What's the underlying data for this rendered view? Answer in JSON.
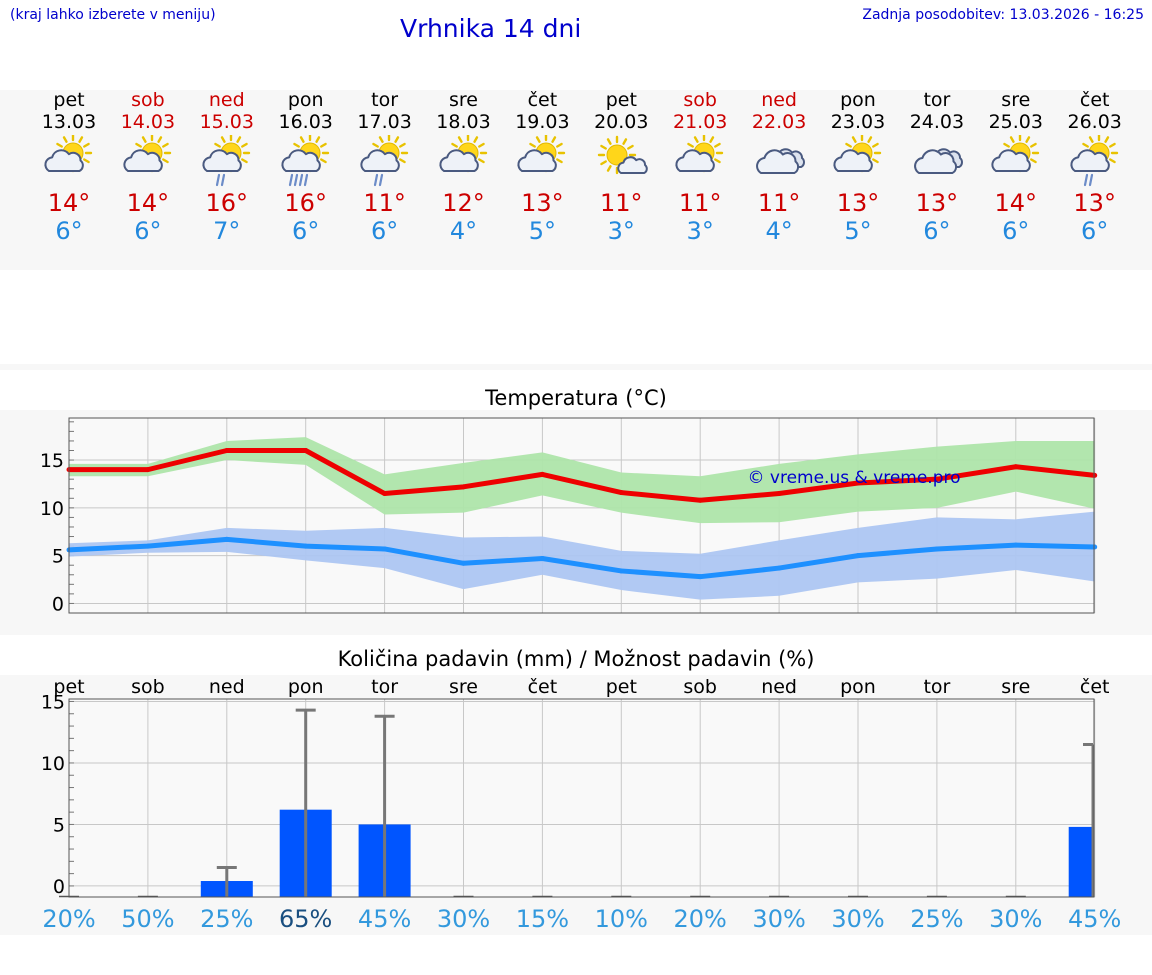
{
  "header": {
    "hint": "(kraj lahko izberete v meniju)",
    "title": "Vrhnika 14 dni",
    "updated": "Zadnja posodobitev: 13.03.2026 - 16:25"
  },
  "colors": {
    "title": "#0000cc",
    "weekend": "#cc0000",
    "max_temp": "#cc0000",
    "min_temp": "#2288dd",
    "max_line": "#ee0000",
    "max_band": "#aee5aa",
    "min_line": "#1e90ff",
    "min_band": "#adc6f2",
    "bar": "#0055ff",
    "prob": "#3399dd",
    "prob_high": "#1a4f80"
  },
  "days": [
    {
      "name": "pet",
      "date": "13.03",
      "weekend": false,
      "icon": "partly-cloudy-icon",
      "max": "14°",
      "min": "6°"
    },
    {
      "name": "sob",
      "date": "14.03",
      "weekend": true,
      "icon": "partly-cloudy-icon",
      "max": "14°",
      "min": "6°"
    },
    {
      "name": "ned",
      "date": "15.03",
      "weekend": true,
      "icon": "sun-cloud-rain-icon",
      "max": "16°",
      "min": "7°"
    },
    {
      "name": "pon",
      "date": "16.03",
      "weekend": false,
      "icon": "sun-cloud-heavy-rain-icon",
      "max": "16°",
      "min": "6°"
    },
    {
      "name": "tor",
      "date": "17.03",
      "weekend": false,
      "icon": "sun-cloud-rain-icon",
      "max": "11°",
      "min": "6°"
    },
    {
      "name": "sre",
      "date": "18.03",
      "weekend": false,
      "icon": "partly-cloudy-icon",
      "max": "12°",
      "min": "4°"
    },
    {
      "name": "čet",
      "date": "19.03",
      "weekend": false,
      "icon": "partly-cloudy-icon",
      "max": "13°",
      "min": "5°"
    },
    {
      "name": "pet",
      "date": "20.03",
      "weekend": false,
      "icon": "mostly-sunny-icon",
      "max": "11°",
      "min": "3°"
    },
    {
      "name": "sob",
      "date": "21.03",
      "weekend": true,
      "icon": "partly-cloudy-icon",
      "max": "11°",
      "min": "3°"
    },
    {
      "name": "ned",
      "date": "22.03",
      "weekend": true,
      "icon": "cloudy-icon",
      "max": "11°",
      "min": "4°"
    },
    {
      "name": "pon",
      "date": "23.03",
      "weekend": false,
      "icon": "partly-cloudy-icon",
      "max": "13°",
      "min": "5°"
    },
    {
      "name": "tor",
      "date": "24.03",
      "weekend": false,
      "icon": "cloudy-icon",
      "max": "13°",
      "min": "6°"
    },
    {
      "name": "sre",
      "date": "25.03",
      "weekend": false,
      "icon": "partly-cloudy-icon",
      "max": "14°",
      "min": "6°"
    },
    {
      "name": "čet",
      "date": "26.03",
      "weekend": false,
      "icon": "sun-cloud-rain-icon",
      "max": "13°",
      "min": "6°"
    }
  ],
  "chart_data": [
    {
      "type": "line",
      "title": "Temperatura (°C)",
      "xlabel": "",
      "ylabel": "",
      "ylim": [
        -1,
        19.4
      ],
      "yticks": [
        0,
        5,
        10,
        15
      ],
      "watermark": "© vreme.us & vreme.pro",
      "series": [
        {
          "name": "max",
          "values": [
            14.0,
            14.0,
            16.0,
            16.0,
            11.5,
            12.2,
            13.5,
            11.6,
            10.8,
            11.5,
            12.6,
            13.0,
            14.3,
            13.4
          ],
          "band_low": [
            13.3,
            13.3,
            15.0,
            14.5,
            9.3,
            9.5,
            11.3,
            9.5,
            8.4,
            8.5,
            9.6,
            10.0,
            11.7,
            9.9
          ],
          "band_high": [
            14.6,
            14.6,
            17.0,
            17.4,
            13.5,
            14.7,
            15.8,
            13.7,
            13.3,
            14.6,
            15.6,
            16.4,
            17.0,
            17.0
          ]
        },
        {
          "name": "min",
          "values": [
            5.6,
            6.0,
            6.7,
            6.0,
            5.7,
            4.2,
            4.7,
            3.4,
            2.8,
            3.7,
            5.0,
            5.7,
            6.1,
            5.9
          ],
          "band_low": [
            4.9,
            5.3,
            5.4,
            4.5,
            3.7,
            1.5,
            3.0,
            1.4,
            0.4,
            0.8,
            2.2,
            2.6,
            3.5,
            2.3
          ],
          "band_high": [
            6.3,
            6.6,
            7.9,
            7.6,
            7.9,
            6.9,
            7.0,
            5.5,
            5.2,
            6.6,
            7.9,
            9.0,
            8.8,
            9.6
          ]
        }
      ]
    },
    {
      "type": "bar",
      "title": "Količina padavin (mm) / Možnost padavin (%)",
      "categories": [
        "pet",
        "sob",
        "ned",
        "pon",
        "tor",
        "sre",
        "čet",
        "pet",
        "sob",
        "ned",
        "pon",
        "tor",
        "sre",
        "čet"
      ],
      "ylim": [
        -0.9,
        15.2
      ],
      "yticks": [
        0,
        5,
        10,
        15
      ],
      "values": [
        0,
        0,
        0.4,
        6.2,
        5.0,
        0,
        0,
        0,
        0,
        0,
        0,
        0,
        0,
        4.8
      ],
      "error_high": [
        0,
        0,
        1.5,
        14.3,
        13.8,
        0,
        0,
        0,
        0,
        0,
        0,
        0,
        0,
        11.5
      ],
      "probability": [
        "20%",
        "50%",
        "25%",
        "65%",
        "45%",
        "30%",
        "15%",
        "10%",
        "20%",
        "30%",
        "30%",
        "25%",
        "30%",
        "45%"
      ]
    }
  ]
}
